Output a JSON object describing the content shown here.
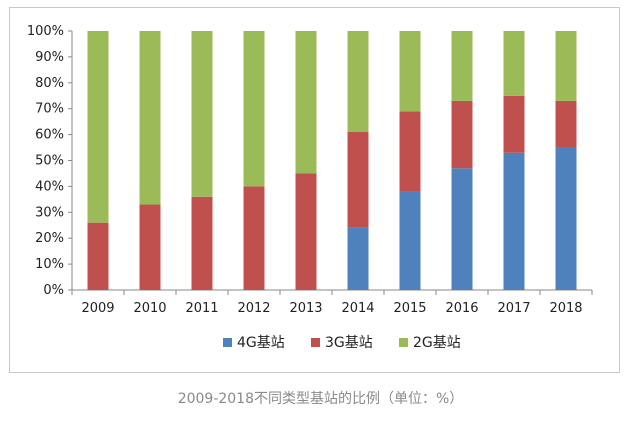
{
  "chart_data": {
    "type": "bar",
    "stacked": true,
    "categories": [
      "2009",
      "2010",
      "2011",
      "2012",
      "2013",
      "2014",
      "2015",
      "2016",
      "2017",
      "2018"
    ],
    "series": [
      {
        "name": "4G基站",
        "color": "#4f81bd",
        "values": [
          0,
          0,
          0,
          0,
          0,
          24,
          38,
          47,
          53,
          55
        ]
      },
      {
        "name": "3G基站",
        "color": "#c0504d",
        "values": [
          26,
          33,
          36,
          40,
          45,
          37,
          31,
          26,
          22,
          18
        ]
      },
      {
        "name": "2G基站",
        "color": "#9bbb59",
        "values": [
          74,
          67,
          64,
          60,
          55,
          39,
          31,
          27,
          25,
          27
        ]
      }
    ],
    "y_ticks": [
      "0%",
      "10%",
      "20%",
      "30%",
      "40%",
      "50%",
      "60%",
      "70%",
      "80%",
      "90%",
      "100%"
    ],
    "ylim": [
      0,
      100
    ],
    "grid": false,
    "legend": "bottom-center"
  },
  "caption": "2009-2018不同类型基站的比例（单位：%）"
}
